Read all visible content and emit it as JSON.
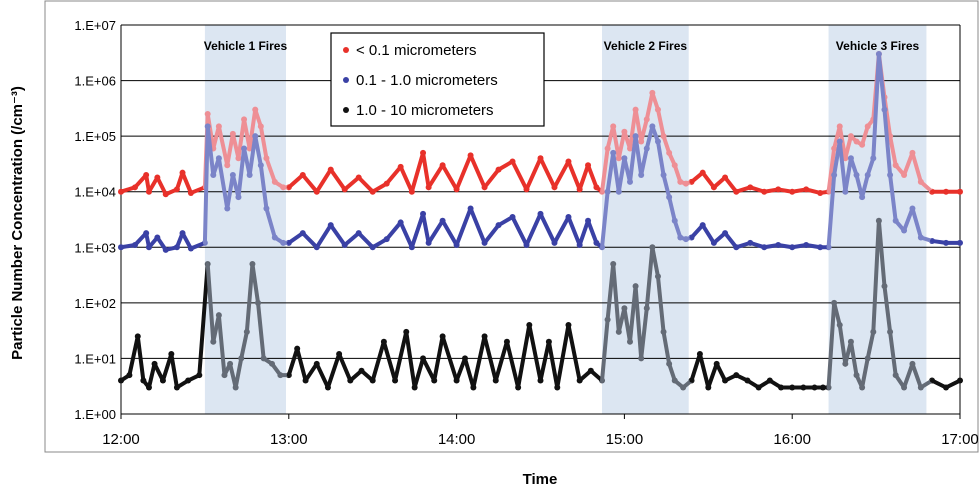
{
  "chart_data": {
    "type": "scatter",
    "xlabel": "Time",
    "ylabel": "Particle Number Concentration (/cm⁻³)",
    "x_ticks": [
      "12:00",
      "13:00",
      "14:00",
      "15:00",
      "16:00",
      "17:00"
    ],
    "xlim": [
      "12:00",
      "17:00"
    ],
    "y_ticks": [
      "1.E+00",
      "1.E+01",
      "1.E+02",
      "1.E+03",
      "1.E+04",
      "1.E+05",
      "1.E+06",
      "1.E+07"
    ],
    "ylim": [
      1,
      10000000
    ],
    "y_scale": "log",
    "grid": "horizontal",
    "legend_position": "top-center",
    "annotations": [
      {
        "label": "Vehicle 1 Fires",
        "start": "12:30",
        "end": "12:59"
      },
      {
        "label": "Vehicle 2 Fires",
        "start": "14:52",
        "end": "15:23"
      },
      {
        "label": "Vehicle 3 Fires",
        "start": "16:13",
        "end": "16:48"
      }
    ],
    "highlight_color": "#dce6f2",
    "series": [
      {
        "name": "< 0.1 micrometers",
        "color": "#e8312a",
        "faded_color": "#ee8f95",
        "points": [
          [
            "12:00",
            10000
          ],
          [
            "12:05",
            12000
          ],
          [
            "12:09",
            20000
          ],
          [
            "12:10",
            10000
          ],
          [
            "12:13",
            18000
          ],
          [
            "12:16",
            9000
          ],
          [
            "12:20",
            11000
          ],
          [
            "12:22",
            22000
          ],
          [
            "12:25",
            9500
          ],
          [
            "12:30",
            12000
          ],
          [
            "12:31",
            250000
          ],
          [
            "12:33",
            60000
          ],
          [
            "12:35",
            150000
          ],
          [
            "12:38",
            30000
          ],
          [
            "12:40",
            110000
          ],
          [
            "12:42",
            40000
          ],
          [
            "12:44",
            200000
          ],
          [
            "12:46",
            60000
          ],
          [
            "12:48",
            300000
          ],
          [
            "12:50",
            150000
          ],
          [
            "12:52",
            40000
          ],
          [
            "12:55",
            15000
          ],
          [
            "12:58",
            12000
          ],
          [
            "13:00",
            12000
          ],
          [
            "13:05",
            20000
          ],
          [
            "13:10",
            10000
          ],
          [
            "13:15",
            25000
          ],
          [
            "13:20",
            11000
          ],
          [
            "13:25",
            18000
          ],
          [
            "13:30",
            10000
          ],
          [
            "13:35",
            14000
          ],
          [
            "13:40",
            28000
          ],
          [
            "13:44",
            10000
          ],
          [
            "13:48",
            50000
          ],
          [
            "13:50",
            12000
          ],
          [
            "13:55",
            30000
          ],
          [
            "14:00",
            11000
          ],
          [
            "14:05",
            45000
          ],
          [
            "14:10",
            12000
          ],
          [
            "14:15",
            25000
          ],
          [
            "14:20",
            35000
          ],
          [
            "14:25",
            11000
          ],
          [
            "14:30",
            40000
          ],
          [
            "14:35",
            12000
          ],
          [
            "14:40",
            35000
          ],
          [
            "14:44",
            11000
          ],
          [
            "14:47",
            30000
          ],
          [
            "14:50",
            12000
          ],
          [
            "14:52",
            10000
          ],
          [
            "14:54",
            60000
          ],
          [
            "14:56",
            150000
          ],
          [
            "14:58",
            40000
          ],
          [
            "15:00",
            120000
          ],
          [
            "15:02",
            60000
          ],
          [
            "15:04",
            300000
          ],
          [
            "15:06",
            80000
          ],
          [
            "15:08",
            200000
          ],
          [
            "15:10",
            600000
          ],
          [
            "15:12",
            300000
          ],
          [
            "15:14",
            100000
          ],
          [
            "15:16",
            50000
          ],
          [
            "15:18",
            30000
          ],
          [
            "15:20",
            15000
          ],
          [
            "15:22",
            14000
          ],
          [
            "15:24",
            15000
          ],
          [
            "15:28",
            22000
          ],
          [
            "15:32",
            12000
          ],
          [
            "15:36",
            18000
          ],
          [
            "15:40",
            10000
          ],
          [
            "15:45",
            12000
          ],
          [
            "15:50",
            10000
          ],
          [
            "15:55",
            11000
          ],
          [
            "16:00",
            10000
          ],
          [
            "16:05",
            11000
          ],
          [
            "16:10",
            9500
          ],
          [
            "16:13",
            10000
          ],
          [
            "16:15",
            60000
          ],
          [
            "16:17",
            150000
          ],
          [
            "16:19",
            40000
          ],
          [
            "16:21",
            100000
          ],
          [
            "16:23",
            80000
          ],
          [
            "16:25",
            70000
          ],
          [
            "16:27",
            150000
          ],
          [
            "16:29",
            200000
          ],
          [
            "16:31",
            3000000
          ],
          [
            "16:33",
            500000
          ],
          [
            "16:35",
            100000
          ],
          [
            "16:37",
            30000
          ],
          [
            "16:40",
            20000
          ],
          [
            "16:43",
            50000
          ],
          [
            "16:46",
            15000
          ],
          [
            "16:50",
            10000
          ],
          [
            "16:55",
            10000
          ],
          [
            "17:00",
            10000
          ]
        ]
      },
      {
        "name": "0.1 - 1.0 micrometers",
        "color": "#3a41a5",
        "faded_color": "#7b84c8",
        "points": [
          [
            "12:00",
            1000
          ],
          [
            "12:05",
            1100
          ],
          [
            "12:09",
            1800
          ],
          [
            "12:10",
            1000
          ],
          [
            "12:13",
            1500
          ],
          [
            "12:16",
            900
          ],
          [
            "12:20",
            1000
          ],
          [
            "12:22",
            1800
          ],
          [
            "12:25",
            950
          ],
          [
            "12:30",
            1200
          ],
          [
            "12:31",
            150000
          ],
          [
            "12:33",
            20000
          ],
          [
            "12:35",
            40000
          ],
          [
            "12:38",
            5000
          ],
          [
            "12:40",
            20000
          ],
          [
            "12:42",
            8000
          ],
          [
            "12:44",
            60000
          ],
          [
            "12:46",
            20000
          ],
          [
            "12:48",
            100000
          ],
          [
            "12:50",
            30000
          ],
          [
            "12:52",
            5000
          ],
          [
            "12:55",
            1500
          ],
          [
            "12:58",
            1200
          ],
          [
            "13:00",
            1200
          ],
          [
            "13:05",
            1800
          ],
          [
            "13:10",
            1000
          ],
          [
            "13:15",
            2500
          ],
          [
            "13:20",
            1100
          ],
          [
            "13:25",
            1800
          ],
          [
            "13:30",
            1000
          ],
          [
            "13:35",
            1400
          ],
          [
            "13:40",
            2800
          ],
          [
            "13:44",
            1000
          ],
          [
            "13:48",
            4000
          ],
          [
            "13:50",
            1200
          ],
          [
            "13:55",
            3000
          ],
          [
            "14:00",
            1100
          ],
          [
            "14:05",
            5000
          ],
          [
            "14:10",
            1200
          ],
          [
            "14:15",
            2500
          ],
          [
            "14:20",
            3500
          ],
          [
            "14:25",
            1100
          ],
          [
            "14:30",
            4000
          ],
          [
            "14:35",
            1200
          ],
          [
            "14:40",
            3500
          ],
          [
            "14:44",
            1100
          ],
          [
            "14:47",
            3000
          ],
          [
            "14:50",
            1200
          ],
          [
            "14:52",
            1000
          ],
          [
            "14:54",
            10000
          ],
          [
            "14:56",
            50000
          ],
          [
            "14:58",
            10000
          ],
          [
            "15:00",
            40000
          ],
          [
            "15:02",
            15000
          ],
          [
            "15:04",
            100000
          ],
          [
            "15:06",
            20000
          ],
          [
            "15:08",
            60000
          ],
          [
            "15:10",
            150000
          ],
          [
            "15:12",
            80000
          ],
          [
            "15:14",
            20000
          ],
          [
            "15:16",
            8000
          ],
          [
            "15:18",
            3000
          ],
          [
            "15:20",
            1500
          ],
          [
            "15:22",
            1400
          ],
          [
            "15:24",
            1500
          ],
          [
            "15:28",
            2500
          ],
          [
            "15:32",
            1200
          ],
          [
            "15:36",
            1800
          ],
          [
            "15:40",
            1000
          ],
          [
            "15:45",
            1200
          ],
          [
            "15:50",
            1000
          ],
          [
            "15:55",
            1100
          ],
          [
            "16:00",
            1000
          ],
          [
            "16:05",
            1100
          ],
          [
            "16:10",
            1000
          ],
          [
            "16:13",
            1000
          ],
          [
            "16:15",
            20000
          ],
          [
            "16:17",
            80000
          ],
          [
            "16:19",
            10000
          ],
          [
            "16:21",
            40000
          ],
          [
            "16:23",
            20000
          ],
          [
            "16:25",
            8000
          ],
          [
            "16:27",
            20000
          ],
          [
            "16:29",
            40000
          ],
          [
            "16:31",
            3000000
          ],
          [
            "16:33",
            300000
          ],
          [
            "16:35",
            20000
          ],
          [
            "16:37",
            3000
          ],
          [
            "16:40",
            2000
          ],
          [
            "16:43",
            5000
          ],
          [
            "16:46",
            1500
          ],
          [
            "16:50",
            1300
          ],
          [
            "16:55",
            1200
          ],
          [
            "17:00",
            1200
          ]
        ]
      },
      {
        "name": "1.0 - 10 micrometers",
        "color": "#111111",
        "faded_color": "#646b76",
        "points": [
          [
            "12:00",
            4
          ],
          [
            "12:03",
            5
          ],
          [
            "12:06",
            25
          ],
          [
            "12:08",
            4
          ],
          [
            "12:10",
            3
          ],
          [
            "12:12",
            8
          ],
          [
            "12:15",
            4
          ],
          [
            "12:18",
            12
          ],
          [
            "12:20",
            3
          ],
          [
            "12:24",
            4
          ],
          [
            "12:28",
            5
          ],
          [
            "12:31",
            500
          ],
          [
            "12:33",
            20
          ],
          [
            "12:35",
            60
          ],
          [
            "12:37",
            5
          ],
          [
            "12:39",
            8
          ],
          [
            "12:41",
            3
          ],
          [
            "12:43",
            10
          ],
          [
            "12:45",
            30
          ],
          [
            "12:47",
            500
          ],
          [
            "12:49",
            100
          ],
          [
            "12:51",
            10
          ],
          [
            "12:54",
            8
          ],
          [
            "12:57",
            5
          ],
          [
            "13:00",
            5
          ],
          [
            "13:03",
            15
          ],
          [
            "13:06",
            4
          ],
          [
            "13:10",
            8
          ],
          [
            "13:14",
            3
          ],
          [
            "13:18",
            12
          ],
          [
            "13:22",
            4
          ],
          [
            "13:26",
            6
          ],
          [
            "13:30",
            4
          ],
          [
            "13:34",
            20
          ],
          [
            "13:38",
            4
          ],
          [
            "13:42",
            30
          ],
          [
            "13:45",
            3
          ],
          [
            "13:48",
            10
          ],
          [
            "13:52",
            4
          ],
          [
            "13:55",
            25
          ],
          [
            "14:00",
            4
          ],
          [
            "14:03",
            10
          ],
          [
            "14:06",
            3
          ],
          [
            "14:10",
            25
          ],
          [
            "14:14",
            4
          ],
          [
            "14:18",
            20
          ],
          [
            "14:22",
            3
          ],
          [
            "14:26",
            40
          ],
          [
            "14:30",
            4
          ],
          [
            "14:33",
            20
          ],
          [
            "14:36",
            3
          ],
          [
            "14:40",
            40
          ],
          [
            "14:44",
            4
          ],
          [
            "14:48",
            6
          ],
          [
            "14:52",
            4
          ],
          [
            "14:54",
            50
          ],
          [
            "14:56",
            500
          ],
          [
            "14:58",
            30
          ],
          [
            "15:00",
            80
          ],
          [
            "15:02",
            20
          ],
          [
            "15:04",
            200
          ],
          [
            "15:06",
            10
          ],
          [
            "15:08",
            80
          ],
          [
            "15:10",
            1000
          ],
          [
            "15:12",
            300
          ],
          [
            "15:14",
            30
          ],
          [
            "15:16",
            8
          ],
          [
            "15:18",
            4
          ],
          [
            "15:21",
            3
          ],
          [
            "15:24",
            4
          ],
          [
            "15:27",
            12
          ],
          [
            "15:30",
            3
          ],
          [
            "15:33",
            8
          ],
          [
            "15:36",
            4
          ],
          [
            "15:40",
            5
          ],
          [
            "15:44",
            4
          ],
          [
            "15:48",
            3
          ],
          [
            "15:52",
            4
          ],
          [
            "15:56",
            3
          ],
          [
            "16:00",
            3
          ],
          [
            "16:04",
            3
          ],
          [
            "16:08",
            3
          ],
          [
            "16:11",
            3
          ],
          [
            "16:13",
            3
          ],
          [
            "16:15",
            100
          ],
          [
            "16:17",
            40
          ],
          [
            "16:19",
            8
          ],
          [
            "16:21",
            20
          ],
          [
            "16:23",
            5
          ],
          [
            "16:25",
            3
          ],
          [
            "16:27",
            10
          ],
          [
            "16:29",
            30
          ],
          [
            "16:31",
            3000
          ],
          [
            "16:33",
            200
          ],
          [
            "16:35",
            30
          ],
          [
            "16:37",
            5
          ],
          [
            "16:40",
            3
          ],
          [
            "16:43",
            8
          ],
          [
            "16:46",
            3
          ],
          [
            "16:50",
            4
          ],
          [
            "16:55",
            3
          ],
          [
            "17:00",
            4
          ]
        ]
      }
    ]
  }
}
